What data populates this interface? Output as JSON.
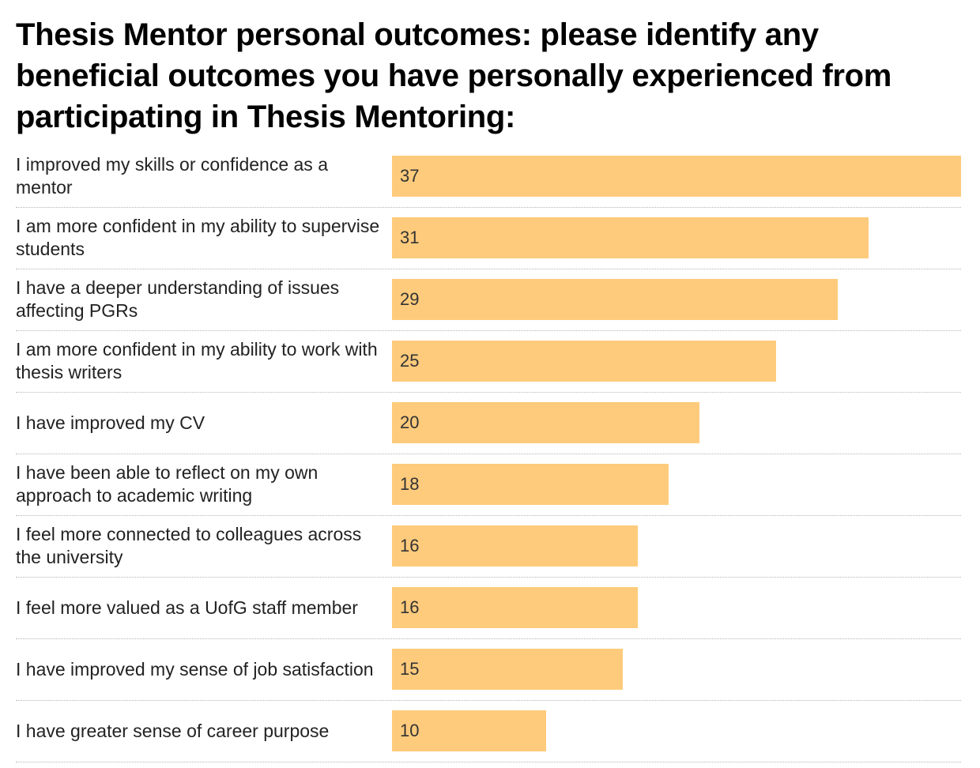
{
  "chart_data": {
    "type": "bar",
    "orientation": "horizontal",
    "title": "Thesis Mentor personal outcomes: please identify any beneficial outcomes you have personally experienced from participating in Thesis Mentoring:",
    "xlim": [
      0,
      37
    ],
    "bar_color": "#fecb7c",
    "grid": false,
    "categories": [
      "I improved my skills or confidence as a mentor",
      "I am more confident in my ability to supervise students",
      "I have a deeper understanding of issues affecting PGRs",
      "I am more confident in my ability to work with thesis writers",
      "I have improved my CV",
      "I have been able to reflect on my own approach to academic writing",
      "I feel more connected to colleagues across the university",
      "I feel more valued as a UofG staff member",
      "I have improved my sense of job satisfaction",
      "I have greater sense of career purpose"
    ],
    "values": [
      37,
      31,
      29,
      25,
      20,
      18,
      16,
      16,
      15,
      10
    ]
  }
}
